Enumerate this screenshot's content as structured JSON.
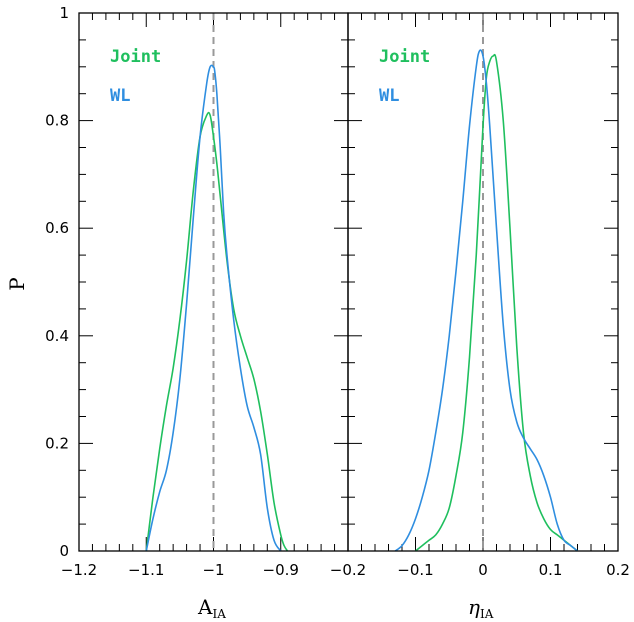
{
  "chart_data": [
    {
      "type": "line",
      "panel": "left",
      "xlabel_main": "A",
      "xlabel_sub": "IA",
      "ylabel": "P",
      "xlim": [
        -1.2,
        -0.8
      ],
      "ylim": [
        0,
        1
      ],
      "x_ticks": [
        -1.2,
        -1.1,
        -1,
        -0.9
      ],
      "x_tick_labels": [
        "−1.2",
        "−1.1",
        "−1",
        "−0.9"
      ],
      "y_ticks": [
        0,
        0.2,
        0.4,
        0.6,
        0.8,
        1
      ],
      "y_tick_labels": [
        "0",
        "0.2",
        "0.4",
        "0.6",
        "0.8",
        "1"
      ],
      "reference_line_x": -1,
      "legend_placement": "top-left",
      "series": [
        {
          "name": "Joint",
          "color": "#1fbf5e",
          "x": [
            -1.1,
            -1.09,
            -1.08,
            -1.07,
            -1.06,
            -1.05,
            -1.04,
            -1.03,
            -1.02,
            -1.01,
            -1.005,
            -1.0,
            -0.995,
            -0.99,
            -0.98,
            -0.97,
            -0.96,
            -0.95,
            -0.94,
            -0.93,
            -0.92,
            -0.91,
            -0.9,
            -0.895,
            -0.89
          ],
          "y": [
            0.0,
            0.1,
            0.19,
            0.27,
            0.34,
            0.43,
            0.54,
            0.67,
            0.77,
            0.81,
            0.81,
            0.77,
            0.72,
            0.66,
            0.54,
            0.45,
            0.4,
            0.36,
            0.32,
            0.26,
            0.18,
            0.09,
            0.03,
            0.01,
            0.0
          ]
        },
        {
          "name": "WL",
          "color": "#2f8ee0",
          "x": [
            -1.1,
            -1.09,
            -1.08,
            -1.07,
            -1.06,
            -1.05,
            -1.04,
            -1.03,
            -1.02,
            -1.01,
            -1.005,
            -1.0,
            -0.998,
            -0.995,
            -0.99,
            -0.985,
            -0.98,
            -0.97,
            -0.96,
            -0.95,
            -0.94,
            -0.93,
            -0.92,
            -0.91,
            -0.9
          ],
          "y": [
            0.0,
            0.06,
            0.11,
            0.15,
            0.22,
            0.32,
            0.46,
            0.62,
            0.77,
            0.87,
            0.9,
            0.9,
            0.89,
            0.85,
            0.75,
            0.63,
            0.55,
            0.43,
            0.34,
            0.27,
            0.23,
            0.18,
            0.08,
            0.02,
            0.0
          ]
        }
      ]
    },
    {
      "type": "line",
      "panel": "right",
      "xlabel_main": "η",
      "xlabel_sub": "IA",
      "xlim": [
        -0.2,
        0.2
      ],
      "ylim": [
        0,
        1
      ],
      "x_ticks": [
        -0.2,
        -0.1,
        0,
        0.1,
        0.2
      ],
      "x_tick_labels": [
        "−0.2",
        "−0.1",
        "0",
        "0.1",
        "0.2"
      ],
      "reference_line_x": 0,
      "legend_placement": "top-left",
      "series": [
        {
          "name": "Joint",
          "color": "#1fbf5e",
          "x": [
            -0.1,
            -0.09,
            -0.08,
            -0.07,
            -0.06,
            -0.05,
            -0.04,
            -0.03,
            -0.02,
            -0.01,
            0.0,
            0.005,
            0.01,
            0.015,
            0.02,
            0.03,
            0.04,
            0.05,
            0.06,
            0.07,
            0.08,
            0.09,
            0.1,
            0.11,
            0.12,
            0.13,
            0.14
          ],
          "y": [
            0.0,
            0.01,
            0.02,
            0.03,
            0.05,
            0.08,
            0.14,
            0.22,
            0.36,
            0.55,
            0.79,
            0.88,
            0.91,
            0.92,
            0.91,
            0.8,
            0.6,
            0.38,
            0.22,
            0.14,
            0.09,
            0.06,
            0.04,
            0.03,
            0.02,
            0.01,
            0.0
          ]
        },
        {
          "name": "WL",
          "color": "#2f8ee0",
          "x": [
            -0.13,
            -0.12,
            -0.11,
            -0.1,
            -0.09,
            -0.08,
            -0.07,
            -0.06,
            -0.05,
            -0.04,
            -0.03,
            -0.02,
            -0.01,
            -0.005,
            0.0,
            0.005,
            0.01,
            0.02,
            0.03,
            0.04,
            0.05,
            0.06,
            0.07,
            0.08,
            0.09,
            0.1,
            0.11,
            0.12,
            0.13,
            0.14
          ],
          "y": [
            0.0,
            0.01,
            0.03,
            0.06,
            0.1,
            0.15,
            0.22,
            0.3,
            0.4,
            0.52,
            0.65,
            0.79,
            0.9,
            0.93,
            0.92,
            0.87,
            0.79,
            0.6,
            0.42,
            0.3,
            0.24,
            0.21,
            0.19,
            0.17,
            0.14,
            0.1,
            0.05,
            0.02,
            0.01,
            0.0
          ]
        }
      ]
    }
  ]
}
